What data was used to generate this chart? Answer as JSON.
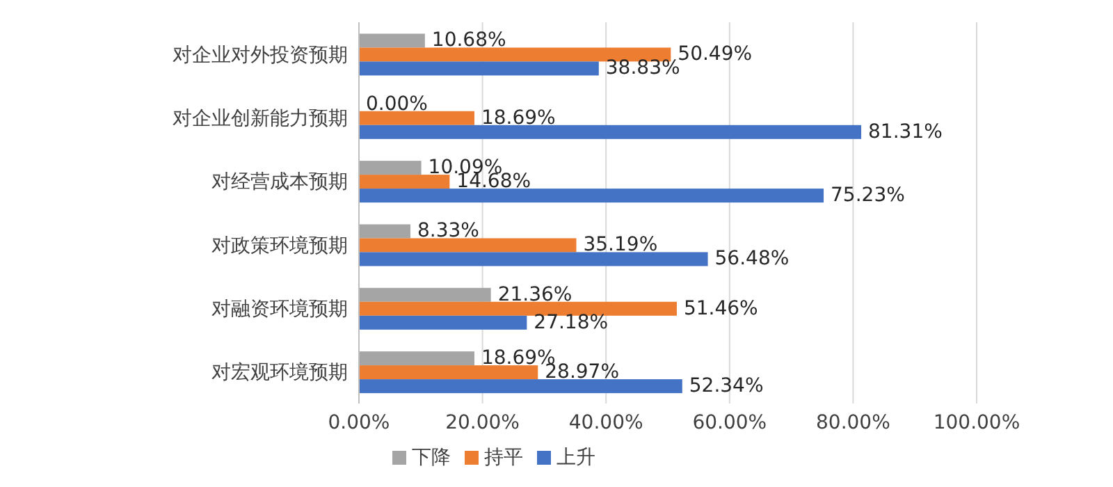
{
  "chart_data": {
    "type": "bar",
    "orientation": "horizontal",
    "categories": [
      "对企业对外投资预期",
      "对企业创新能力预期",
      "对经营成本预期",
      "对政策环境预期",
      "对融资环境预期",
      "对宏观环境预期"
    ],
    "series": [
      {
        "name": "下降",
        "color": "#a5a5a5",
        "values": [
          10.68,
          0,
          10.09,
          8.33,
          21.36,
          18.69
        ],
        "value_labels": [
          "10.68%",
          "0.00%",
          "10.09%",
          "8.33%",
          "21.36%",
          "18.69%"
        ]
      },
      {
        "name": "持平",
        "color": "#ed7d31",
        "values": [
          50.49,
          18.69,
          14.68,
          35.19,
          51.46,
          28.97
        ],
        "value_labels": [
          "50.49%",
          "18.69%",
          "14.68%",
          "35.19%",
          "51.46%",
          "28.97%"
        ]
      },
      {
        "name": "上升",
        "color": "#4472c4",
        "values": [
          38.83,
          81.31,
          75.23,
          56.48,
          27.18,
          52.34
        ],
        "value_labels": [
          "38.83%",
          "81.31%",
          "75.23%",
          "56.48%",
          "27.18%",
          "52.34%"
        ]
      }
    ],
    "xlim": [
      0,
      100
    ],
    "xticks": [
      {
        "value": 0,
        "label": "0.00%"
      },
      {
        "value": 20,
        "label": "20.00%"
      },
      {
        "value": 40,
        "label": "40.00%"
      },
      {
        "value": 60,
        "label": "60.00%"
      },
      {
        "value": 80,
        "label": "80.00%"
      },
      {
        "value": 100,
        "label": "100.00%"
      }
    ],
    "grid": "x",
    "legend": "bottom"
  }
}
